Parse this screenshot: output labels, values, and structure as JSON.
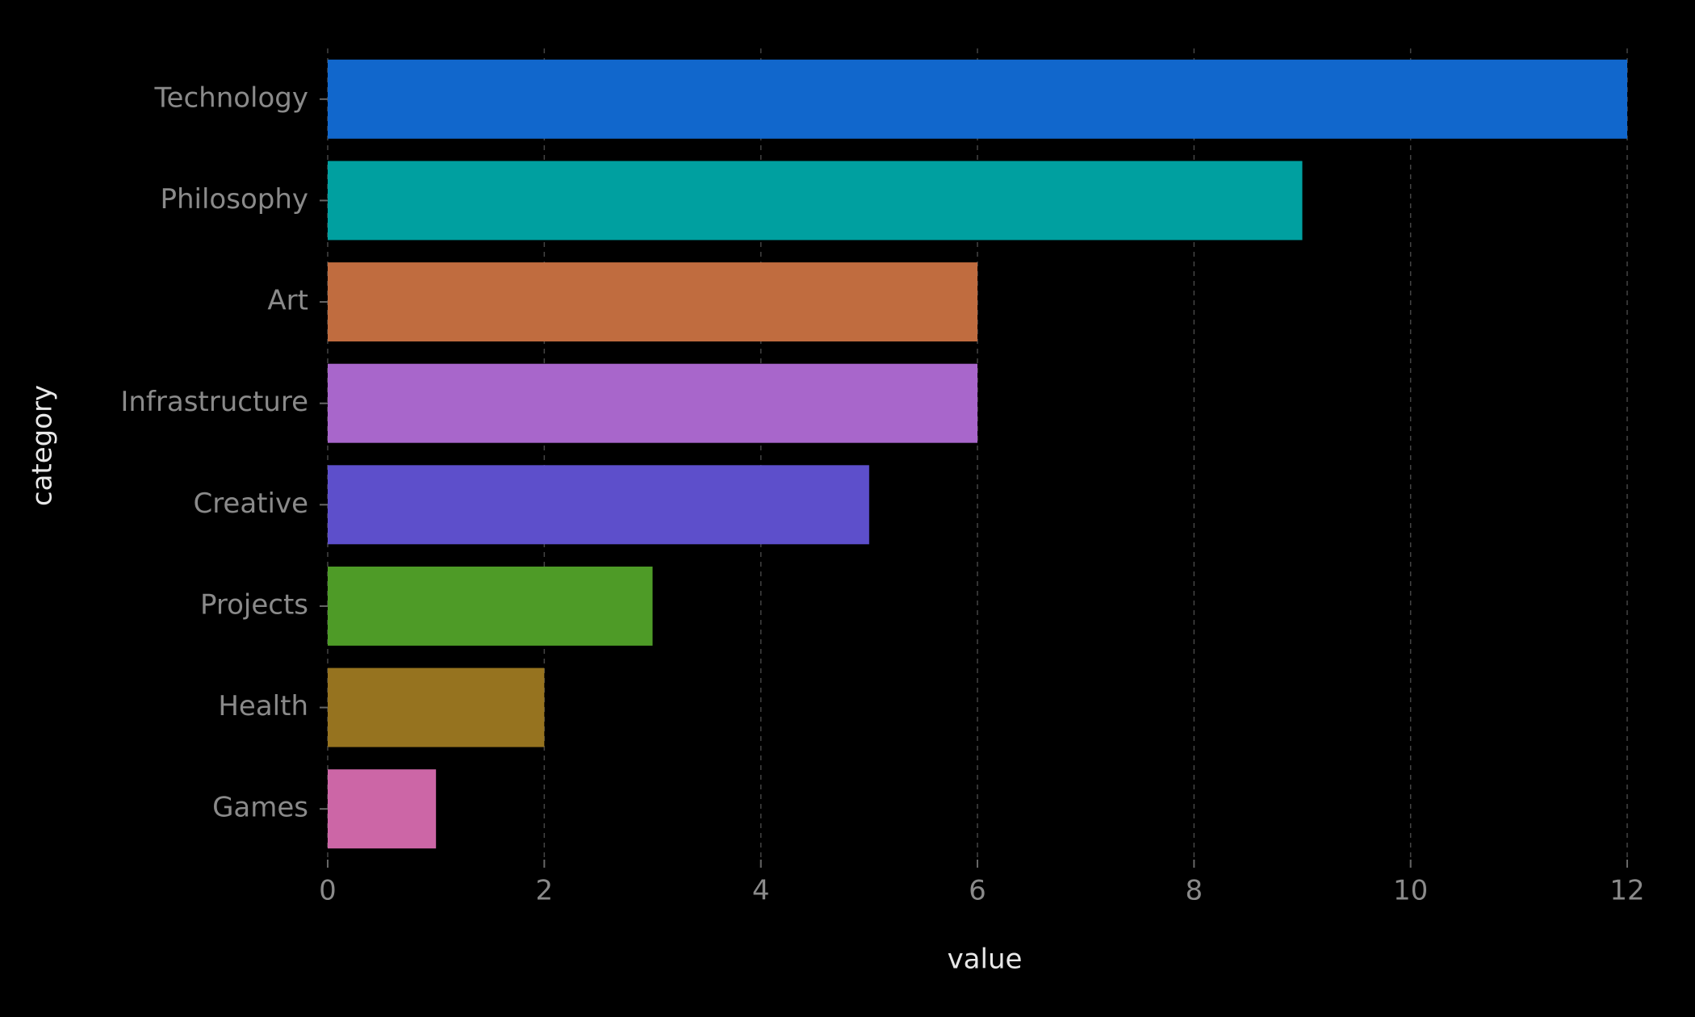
{
  "chart_data": {
    "type": "bar",
    "orientation": "horizontal",
    "x_label": "value",
    "y_label": "category",
    "categories": [
      "Technology",
      "Philosophy",
      "Art",
      "Infrastructure",
      "Creative",
      "Projects",
      "Health",
      "Games"
    ],
    "values": [
      12,
      9,
      6,
      6,
      5,
      3,
      2,
      1
    ],
    "colors": [
      "#1167cc",
      "#00a0a0",
      "#c06c3f",
      "#a866cb",
      "#5d4fcb",
      "#4e9b27",
      "#96731f",
      "#cc66a6"
    ],
    "xlim": [
      0,
      12
    ],
    "xticks": [
      0,
      2,
      4,
      6,
      8,
      10,
      12
    ],
    "grid": true
  }
}
